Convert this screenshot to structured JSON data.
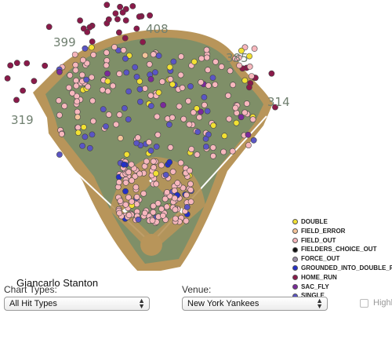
{
  "distances": {
    "left": "319",
    "left_center": "399",
    "center": "408",
    "right_center": "385",
    "right": "314"
  },
  "player_name": "Giancarlo Stanton",
  "legend": [
    {
      "label": "DOUBLE",
      "color": "#f2e133"
    },
    {
      "label": "FIELD_ERROR",
      "color": "#f4c49a"
    },
    {
      "label": "FIELD_OUT",
      "color": "#f7b7bd"
    },
    {
      "label": "FIELDERS_CHOICE_OUT",
      "color": "#111111"
    },
    {
      "label": "FORCE_OUT",
      "color": "#9b8fa6"
    },
    {
      "label": "GROUNDED_INTO_DOUBLE_PLAY",
      "color": "#2430c8"
    },
    {
      "label": "HOME_RUN",
      "color": "#8a1a4a"
    },
    {
      "label": "SAC_FLY",
      "color": "#7a2a9a"
    },
    {
      "label": "SINGLE",
      "color": "#5a55c4"
    }
  ],
  "controls": {
    "chart_types_label": "Chart Types:",
    "chart_types_value": "All Hit Types",
    "venue_label": "Venue:",
    "venue_value": "New York Yankees",
    "highlight_label": "Highli"
  }
}
